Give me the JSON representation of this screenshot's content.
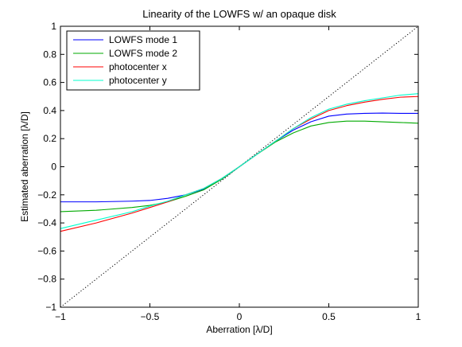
{
  "chart_data": {
    "type": "line",
    "title": "Linearity of the LOWFS w/ an opaque disk",
    "xlabel": "Aberration [λ/D]",
    "ylabel": "Estimated aberration [λ/D]",
    "xlim": [
      -1,
      1
    ],
    "ylim": [
      -1,
      1
    ],
    "xticks": [
      -1,
      -0.5,
      0,
      0.5,
      1
    ],
    "xtick_labels": [
      "−1",
      "−0.5",
      "0",
      "0.5",
      "1"
    ],
    "yticks": [
      -1,
      -0.8,
      -0.6,
      -0.4,
      -0.2,
      0,
      0.2,
      0.4,
      0.6,
      0.8,
      1
    ],
    "ytick_labels": [
      "−1",
      "−0.8",
      "−0.6",
      "−0.4",
      "−0.2",
      "0",
      "0.2",
      "0.4",
      "0.6",
      "0.8",
      "1"
    ],
    "grid": false,
    "legend_position": "top-left",
    "x": [
      -1.0,
      -0.8,
      -0.6,
      -0.5,
      -0.4,
      -0.3,
      -0.2,
      -0.1,
      0.0,
      0.1,
      0.2,
      0.3,
      0.4,
      0.5,
      0.6,
      0.7,
      0.8,
      0.9,
      1.0
    ],
    "series": [
      {
        "name": "LOWFS mode 1",
        "color": "#0000ff",
        "values": [
          -0.25,
          -0.25,
          -0.245,
          -0.24,
          -0.225,
          -0.2,
          -0.16,
          -0.09,
          0.0,
          0.09,
          0.18,
          0.26,
          0.32,
          0.36,
          0.375,
          0.38,
          0.382,
          0.38,
          0.38
        ]
      },
      {
        "name": "LOWFS mode 2",
        "color": "#00aa00",
        "values": [
          -0.32,
          -0.31,
          -0.29,
          -0.275,
          -0.25,
          -0.21,
          -0.165,
          -0.09,
          0.0,
          0.09,
          0.175,
          0.24,
          0.29,
          0.315,
          0.325,
          0.325,
          0.32,
          0.315,
          0.31
        ]
      },
      {
        "name": "photocenter x",
        "color": "#ff0000",
        "values": [
          -0.46,
          -0.4,
          -0.33,
          -0.29,
          -0.25,
          -0.2,
          -0.155,
          -0.085,
          0.0,
          0.09,
          0.18,
          0.27,
          0.34,
          0.4,
          0.435,
          0.46,
          0.48,
          0.495,
          0.5
        ]
      },
      {
        "name": "photocenter y",
        "color": "#00ffcc",
        "values": [
          -0.44,
          -0.38,
          -0.32,
          -0.28,
          -0.245,
          -0.2,
          -0.155,
          -0.085,
          0.0,
          0.09,
          0.18,
          0.27,
          0.35,
          0.41,
          0.445,
          0.47,
          0.49,
          0.51,
          0.52
        ]
      }
    ],
    "reference_line": {
      "style": "dotted",
      "color": "#000000",
      "x": [
        -1,
        1
      ],
      "y": [
        -1,
        1
      ]
    }
  }
}
